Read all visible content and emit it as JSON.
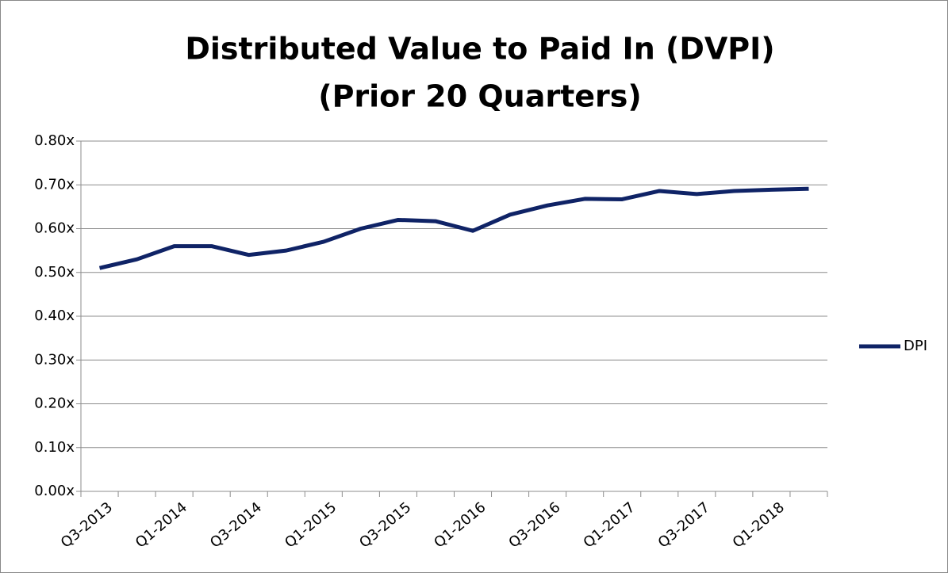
{
  "chart_data": {
    "type": "line",
    "title": [
      "Distributed Value to Paid In (DVPI)",
      "(Prior 20 Quarters)"
    ],
    "categories": [
      "Q3-2013",
      null,
      "Q1-2014",
      null,
      "Q3-2014",
      null,
      "Q1-2015",
      null,
      "Q3-2015",
      null,
      "Q1-2016",
      null,
      "Q3-2016",
      null,
      "Q1-2017",
      null,
      "Q3-2017",
      null,
      "Q1-2018",
      null
    ],
    "series": [
      {
        "name": "DPI",
        "color": "#0f2366",
        "values": [
          0.51,
          0.53,
          0.56,
          0.56,
          0.54,
          0.55,
          0.57,
          0.6,
          0.62,
          0.617,
          0.595,
          0.632,
          0.653,
          0.668,
          0.667,
          0.686,
          0.679,
          0.686,
          0.689,
          0.691
        ]
      }
    ],
    "ylim": [
      0,
      0.8
    ],
    "yticks": [
      {
        "value": 0,
        "label": "0.00x"
      },
      {
        "value": 0.1,
        "label": "0.10x"
      },
      {
        "value": 0.2,
        "label": "0.20x"
      },
      {
        "value": 0.3,
        "label": "0.30x"
      },
      {
        "value": 0.4,
        "label": "0.40x"
      },
      {
        "value": 0.5,
        "label": "0.50x"
      },
      {
        "value": 0.6,
        "label": "0.60x"
      },
      {
        "value": 0.7,
        "label": "0.70x"
      },
      {
        "value": 0.8,
        "label": "0.80x"
      }
    ],
    "grid": true,
    "legend": "right"
  }
}
